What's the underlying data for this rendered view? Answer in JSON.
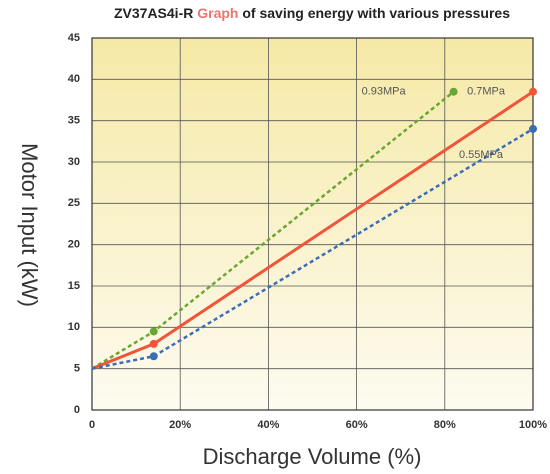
{
  "chart_data": {
    "type": "line",
    "title": {
      "model": "ZV37AS4i-R",
      "highlight": "Graph",
      "rest": "of saving energy with various pressures"
    },
    "x_label": "Discharge Volume (%)",
    "y_label": "Motor Input (kW)",
    "xlim": [
      0,
      100
    ],
    "xticks": [
      0,
      {
        "value": 20,
        "label": "20%"
      },
      {
        "value": 40,
        "label": "40%"
      },
      {
        "value": 60,
        "label": "60%"
      },
      {
        "value": 80,
        "label": "80%"
      },
      {
        "value": 100,
        "label": "100%"
      }
    ],
    "ylim": [
      0,
      45
    ],
    "yticks": [
      0,
      5,
      10,
      15,
      20,
      25,
      30,
      35,
      40,
      45
    ],
    "grid": true,
    "series": [
      {
        "name": "0.93MPa",
        "color": "#6aa632",
        "dashed": true,
        "x": [
          0,
          14,
          82
        ],
        "values": [
          5,
          9.5,
          38.5
        ]
      },
      {
        "name": "0.7MPa",
        "color": "#f0553a",
        "dashed": false,
        "x": [
          0,
          14,
          100
        ],
        "values": [
          5,
          8,
          38.5
        ]
      },
      {
        "name": "0.55MPa",
        "color": "#3d6cb5",
        "dashed": true,
        "x": [
          0,
          14,
          100
        ],
        "values": [
          5,
          6.5,
          34
        ]
      }
    ]
  }
}
